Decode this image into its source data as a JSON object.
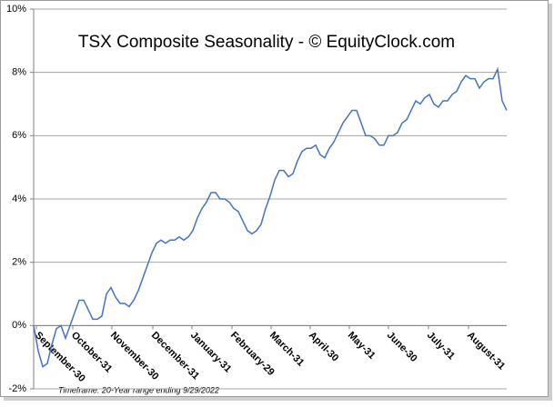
{
  "chart_data": {
    "type": "line",
    "title": "TSX Composite Seasonality - © EquityClock.com",
    "footnote": "Timeframe: 20-Year range ending 9/29/2022",
    "series": [
      {
        "color": "#4472c4",
        "values": [
          0,
          -0.8,
          -1.3,
          -1.2,
          -0.6,
          -0.1,
          0.0,
          -0.4,
          0.0,
          0.4,
          0.8,
          0.8,
          0.5,
          0.2,
          0.2,
          0.3,
          1.0,
          1.2,
          0.9,
          0.7,
          0.7,
          0.6,
          0.8,
          1.1,
          1.5,
          1.9,
          2.3,
          2.6,
          2.7,
          2.6,
          2.7,
          2.7,
          2.8,
          2.7,
          2.8,
          3.0,
          3.4,
          3.7,
          3.9,
          4.2,
          4.2,
          4.0,
          4.0,
          3.9,
          3.7,
          3.6,
          3.3,
          3.0,
          2.9,
          3.0,
          3.2,
          3.7,
          4.1,
          4.6,
          4.9,
          4.9,
          4.7,
          4.8,
          5.2,
          5.5,
          5.6,
          5.6,
          5.7,
          5.4,
          5.3,
          5.6,
          5.8,
          6.1,
          6.4,
          6.6,
          6.8,
          6.8,
          6.4,
          6.0,
          6.0,
          5.9,
          5.7,
          5.7,
          6.0,
          6.0,
          6.1,
          6.4,
          6.5,
          6.8,
          7.1,
          7.0,
          7.2,
          7.3,
          7.0,
          6.9,
          7.1,
          7.1,
          7.3,
          7.4,
          7.7,
          7.9,
          7.8,
          7.8,
          7.5,
          7.7,
          7.8,
          7.8,
          8.1,
          7.1,
          6.8
        ]
      }
    ],
    "xlim": [
      0,
      104
    ],
    "xticks": [
      {
        "value": 0.6,
        "label": "September-30"
      },
      {
        "value": 8.6,
        "label": "October-31"
      },
      {
        "value": 17.2,
        "label": "November-30"
      },
      {
        "value": 26.2,
        "label": "December-31"
      },
      {
        "value": 34.8,
        "label": "January-31"
      },
      {
        "value": 43.6,
        "label": "February-29"
      },
      {
        "value": 52.2,
        "label": "March-31"
      },
      {
        "value": 60.8,
        "label": "April-30"
      },
      {
        "value": 69.4,
        "label": "May-31"
      },
      {
        "value": 78,
        "label": "June-30"
      },
      {
        "value": 86.8,
        "label": "July-31"
      },
      {
        "value": 95.6,
        "label": "August-31"
      }
    ],
    "ylim": [
      -2,
      10
    ],
    "yticks": [
      {
        "value": -2,
        "label": "-2%"
      },
      {
        "value": 0,
        "label": "0%"
      },
      {
        "value": 2,
        "label": "2%"
      },
      {
        "value": 4,
        "label": "4%"
      },
      {
        "value": 6,
        "label": "6%"
      },
      {
        "value": 8,
        "label": "8%"
      },
      {
        "value": 10,
        "label": "10%"
      }
    ],
    "grid": true
  }
}
